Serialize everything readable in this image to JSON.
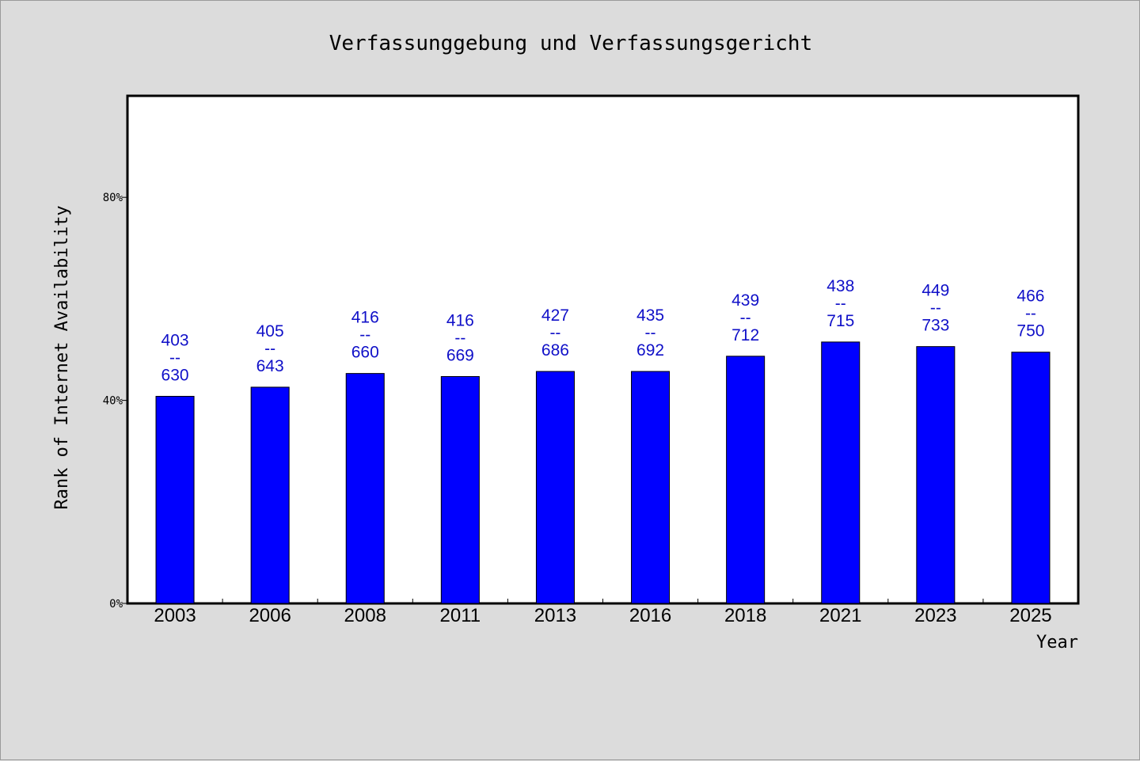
{
  "chart_data": {
    "type": "bar",
    "title": "Verfassunggebung und Verfassungsgericht",
    "xlabel": "Year",
    "ylabel": "Rank of Internet Availability",
    "categories": [
      "2003",
      "2006",
      "2008",
      "2011",
      "2013",
      "2016",
      "2018",
      "2021",
      "2023",
      "2025"
    ],
    "values": [
      40.8,
      42.6,
      45.3,
      44.7,
      45.7,
      45.7,
      48.7,
      51.5,
      50.6,
      49.5
    ],
    "bar_labels": [
      [
        "403",
        "--",
        "630"
      ],
      [
        "405",
        "--",
        "643"
      ],
      [
        "416",
        "--",
        "660"
      ],
      [
        "416",
        "--",
        "669"
      ],
      [
        "427",
        "--",
        "686"
      ],
      [
        "435",
        "--",
        "692"
      ],
      [
        "439",
        "--",
        "712"
      ],
      [
        "438",
        "--",
        "715"
      ],
      [
        "449",
        "--",
        "733"
      ],
      [
        "466",
        "--",
        "750"
      ]
    ],
    "ylim": [
      0,
      100
    ],
    "yticks": [
      0,
      40,
      80
    ],
    "ytick_labels": [
      "0%",
      "40%",
      "80%"
    ],
    "grid": false,
    "legend": "none",
    "colors": {
      "bar": "#0000ff",
      "label": "#1010c8",
      "background": "#dcdcdc",
      "plot_background": "#ffffff"
    }
  }
}
